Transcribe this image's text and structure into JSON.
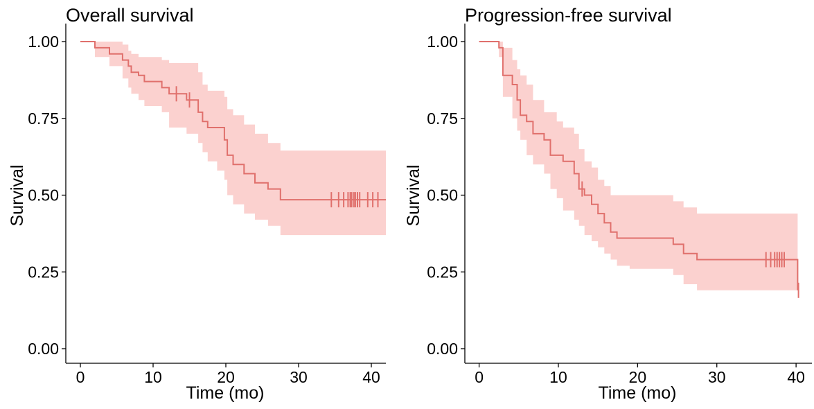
{
  "chart_data": [
    {
      "type": "line",
      "title": "Overall survival",
      "xlabel": "Time (mo)",
      "ylabel": "Survival",
      "xlim": [
        -2,
        42
      ],
      "ylim": [
        0,
        1
      ],
      "xticks": [
        0,
        10,
        20,
        30,
        40
      ],
      "xtick_labels": [
        "0",
        "10",
        "20",
        "30",
        "40"
      ],
      "yticks": [
        0,
        0.25,
        0.5,
        0.75,
        1.0
      ],
      "ytick_labels": [
        "0.00",
        "0.25",
        "0.50",
        "0.75",
        "1.00"
      ],
      "grid": false,
      "line_color": "#e0706c",
      "band_color": "#fbd1cf",
      "series": [
        {
          "kind": "step",
          "x": [
            0,
            2.0,
            4.0,
            5.8,
            6.6,
            7.0,
            8.0,
            8.8,
            11.2,
            12.2,
            14.6,
            16.2,
            16.8,
            17.5,
            18.8,
            19.8,
            20.2,
            21.0,
            22.5,
            24.0,
            25.8,
            27.5,
            42
          ],
          "y": [
            1.0,
            0.98,
            0.96,
            0.94,
            0.92,
            0.9,
            0.89,
            0.87,
            0.85,
            0.83,
            0.81,
            0.77,
            0.74,
            0.72,
            0.72,
            0.68,
            0.63,
            0.6,
            0.57,
            0.54,
            0.52,
            0.485,
            0.485
          ],
          "lower": [
            1.0,
            0.95,
            0.92,
            0.88,
            0.85,
            0.83,
            0.81,
            0.79,
            0.77,
            0.72,
            0.7,
            0.67,
            0.64,
            0.61,
            0.58,
            0.55,
            0.5,
            0.47,
            0.44,
            0.42,
            0.4,
            0.37,
            0.37
          ],
          "upper": [
            1.0,
            1.0,
            1.0,
            0.99,
            0.97,
            0.96,
            0.95,
            0.95,
            0.94,
            0.93,
            0.93,
            0.9,
            0.86,
            0.84,
            0.84,
            0.82,
            0.78,
            0.76,
            0.73,
            0.7,
            0.67,
            0.645,
            0.645
          ],
          "censor_x": [
            13.2,
            15.0,
            34.5,
            35.5,
            36.2,
            36.8,
            37.1,
            37.3,
            37.6,
            37.8,
            38.1,
            38.4,
            39.5,
            40.2,
            40.9
          ]
        }
      ]
    },
    {
      "type": "line",
      "title": "Progression-free survival",
      "xlabel": "Time (mo)",
      "ylabel": "Survival",
      "xlim": [
        -1.8,
        42
      ],
      "ylim": [
        0,
        1
      ],
      "xticks": [
        0,
        10,
        20,
        30,
        40
      ],
      "xtick_labels": [
        "0",
        "10",
        "20",
        "30",
        "40"
      ],
      "yticks": [
        0,
        0.25,
        0.5,
        0.75,
        1.0
      ],
      "ytick_labels": [
        "0.00",
        "0.25",
        "0.50",
        "0.75",
        "1.00"
      ],
      "grid": false,
      "line_color": "#e0706c",
      "band_color": "#fbd1cf",
      "series": [
        {
          "kind": "step",
          "x": [
            0,
            2.5,
            3.0,
            4.2,
            4.8,
            5.2,
            6.0,
            6.8,
            8.2,
            9.0,
            9.8,
            10.6,
            12.0,
            12.6,
            13.3,
            14.2,
            15.0,
            15.8,
            16.6,
            17.4,
            19.0,
            24.5,
            25.8,
            27.5,
            38.8,
            40.2
          ],
          "y": [
            1.0,
            0.98,
            0.89,
            0.86,
            0.81,
            0.76,
            0.74,
            0.7,
            0.68,
            0.63,
            0.63,
            0.61,
            0.57,
            0.52,
            0.5,
            0.47,
            0.44,
            0.41,
            0.38,
            0.36,
            0.36,
            0.34,
            0.31,
            0.29,
            0.29,
            0.19
          ],
          "lower": [
            1.0,
            0.95,
            0.82,
            0.75,
            0.71,
            0.68,
            0.63,
            0.6,
            0.57,
            0.52,
            0.49,
            0.45,
            0.42,
            0.4,
            0.37,
            0.35,
            0.33,
            0.31,
            0.29,
            0.27,
            0.26,
            0.24,
            0.21,
            0.19,
            0.19,
            0.08
          ],
          "upper": [
            1.0,
            1.0,
            0.98,
            0.94,
            0.91,
            0.89,
            0.86,
            0.81,
            0.77,
            0.77,
            0.74,
            0.72,
            0.7,
            0.65,
            0.61,
            0.59,
            0.55,
            0.53,
            0.5,
            0.5,
            0.5,
            0.48,
            0.46,
            0.44,
            0.44,
            0.475
          ],
          "censor_x": [
            13.0,
            36.2,
            36.8,
            37.3,
            37.6,
            37.9,
            38.2,
            38.5,
            40.3
          ]
        }
      ]
    }
  ]
}
